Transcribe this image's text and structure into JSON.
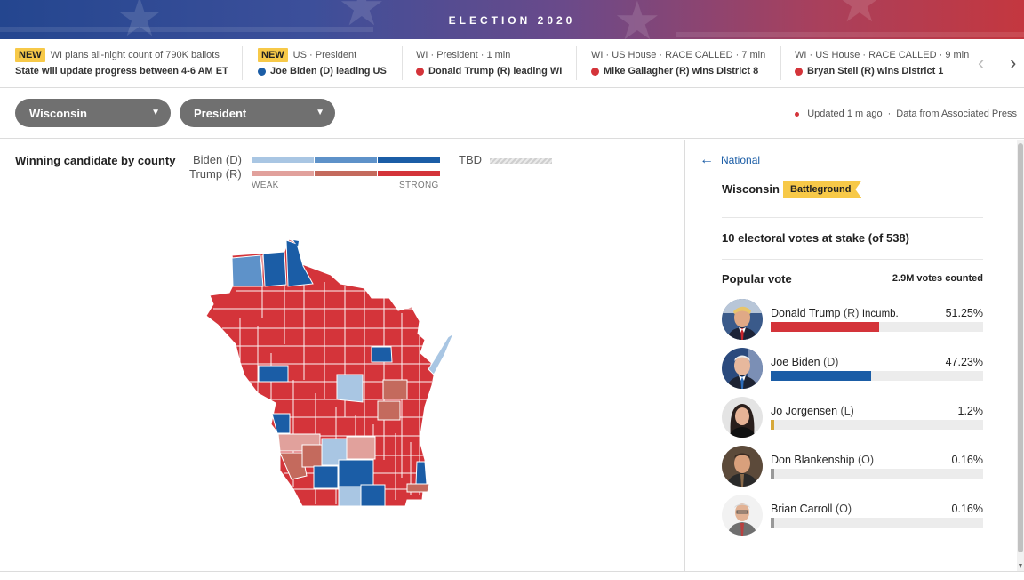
{
  "banner": {
    "title": "ELECTION 2020"
  },
  "ticker": {
    "items": [
      {
        "badge": "NEW",
        "meta": "WI plans all-night count of 790K ballots",
        "headline": "State will update progress between 4-6 AM ET",
        "dot": ""
      },
      {
        "badge": "NEW",
        "meta": "US · President",
        "headline": "Joe Biden (D) leading US",
        "dot": "blue"
      },
      {
        "badge": "",
        "meta": "WI · President · 1 min",
        "headline": "Donald Trump (R) leading WI",
        "dot": "red"
      },
      {
        "badge": "",
        "meta": "WI · US House · RACE CALLED · 7 min",
        "headline": "Mike Gallagher (R) wins District 8",
        "dot": "red"
      },
      {
        "badge": "",
        "meta": "WI · US House · RACE CALLED · 9 min",
        "headline": "Bryan Steil (R) wins District 1",
        "dot": "red"
      }
    ],
    "prev_icon": "chevron-left-icon",
    "next_icon": "chevron-right-icon"
  },
  "filters": {
    "state": "Wisconsin",
    "race": "President",
    "updated": "Updated 1 m ago",
    "source": "Data from Associated Press"
  },
  "map": {
    "title": "Winning candidate by county",
    "legend": {
      "dem": "Biden (D)",
      "rep": "Trump (R)",
      "tbd": "TBD",
      "weak": "WEAK",
      "strong": "STRONG"
    },
    "colors": {
      "dem_weak": "#a9c6e3",
      "dem_mid": "#5e92c9",
      "dem_strong": "#1b5da6",
      "rep_weak": "#e1a19c",
      "rep_mid": "#c46a5d",
      "rep_strong": "#d4343a"
    }
  },
  "results": {
    "back_label": "National",
    "state_name": "Wisconsin",
    "state_tag": "Battleground",
    "electoral": "10 electoral votes at stake (of 538)",
    "popular_label": "Popular vote",
    "votes_counted": "2.9M votes counted",
    "candidates": [
      {
        "name": "Donald Trump",
        "party": "(R)",
        "note": "Incumb.",
        "pct": "51.25%",
        "share": 51.25,
        "color": "#d4343a"
      },
      {
        "name": "Joe Biden",
        "party": "(D)",
        "note": "",
        "pct": "47.23%",
        "share": 47.23,
        "color": "#1b5da6"
      },
      {
        "name": "Jo Jorgensen",
        "party": "(L)",
        "note": "",
        "pct": "1.2%",
        "share": 1.2,
        "color": "#d6a83a"
      },
      {
        "name": "Don Blankenship",
        "party": "(O)",
        "note": "",
        "pct": "0.16%",
        "share": 0.16,
        "color": "#999999"
      },
      {
        "name": "Brian Carroll",
        "party": "(O)",
        "note": "",
        "pct": "0.16%",
        "share": 0.16,
        "color": "#999999"
      }
    ]
  }
}
